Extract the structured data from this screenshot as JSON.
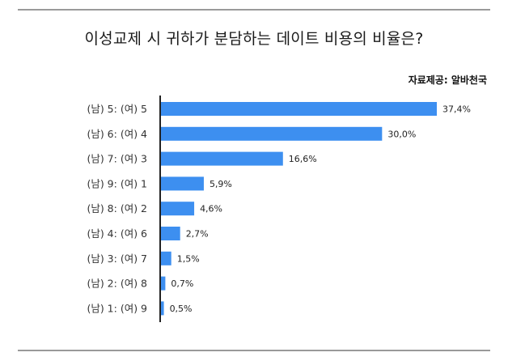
{
  "title": "이성교제 시 귀하가 분담하는 데이트 비용의 비율은?",
  "source": "자료제공: 알바천국",
  "colors": {
    "bar": "#3d8ff0",
    "axis": "#222222",
    "rule": "#9a9a9a"
  },
  "chart_data": {
    "type": "bar",
    "orientation": "horizontal",
    "title": "이성교제 시 귀하가 분담하는 데이트 비용의 비율은?",
    "xlabel": "",
    "ylabel": "",
    "categories": [
      "(남) 5: (여) 5",
      "(남) 6: (여) 4",
      "(남) 7: (여) 3",
      "(남) 9: (여) 1",
      "(남) 8: (여) 2",
      "(남) 4: (여) 6",
      "(남) 3: (여) 7",
      "(남) 2: (여) 8",
      "(남) 1: (여) 9"
    ],
    "values": [
      37.4,
      30.0,
      16.6,
      5.9,
      4.6,
      2.7,
      1.5,
      0.7,
      0.5
    ],
    "value_labels": [
      "37,4%",
      "30,0%",
      "16,6%",
      "5,9%",
      "4,6%",
      "2,7%",
      "1,5%",
      "0,7%",
      "0,5%"
    ],
    "xlim": [
      0,
      37.4
    ],
    "grid": false,
    "legend": "none"
  }
}
